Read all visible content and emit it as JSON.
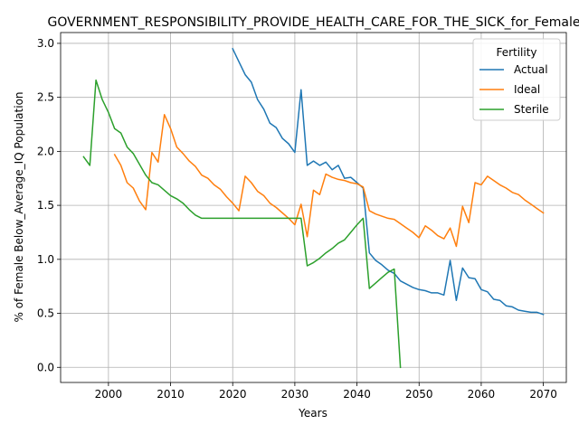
{
  "chart_data": {
    "type": "line",
    "title": "GOVERNMENT_RESPONSIBILITY_PROVIDE_HEALTH_CARE_FOR_THE_SICK_for_Female",
    "xlabel": "Years",
    "ylabel": "% of Female Below_Average_IQ Population",
    "xlim": [
      1992.3,
      2073.7
    ],
    "ylim": [
      -0.14,
      3.1
    ],
    "xticks": [
      2000,
      2010,
      2020,
      2030,
      2040,
      2050,
      2060,
      2070
    ],
    "yticks": [
      0.0,
      0.5,
      1.0,
      1.5,
      2.0,
      2.5,
      3.0
    ],
    "xtick_labels": [
      "2000",
      "2010",
      "2020",
      "2030",
      "2040",
      "2050",
      "2060",
      "2070"
    ],
    "ytick_labels": [
      "0.0",
      "0.5",
      "1.0",
      "1.5",
      "2.0",
      "2.5",
      "3.0"
    ],
    "grid": true,
    "legend": {
      "title": "Fertility",
      "position": "upper-right"
    },
    "series": [
      {
        "name": "Actual",
        "color": "#1f77b4",
        "x": [
          2020,
          2021,
          2022,
          2023,
          2024,
          2025,
          2026,
          2027,
          2028,
          2029,
          2030,
          2031,
          2032,
          2033,
          2034,
          2035,
          2036,
          2037,
          2038,
          2039,
          2040,
          2041,
          2042,
          2043,
          2044,
          2045,
          2046,
          2047,
          2048,
          2049,
          2050,
          2051,
          2052,
          2053,
          2054,
          2055,
          2056,
          2057,
          2058,
          2059,
          2060,
          2061,
          2062,
          2063,
          2064,
          2065,
          2066,
          2067,
          2068,
          2069,
          2070
        ],
        "y": [
          2.95,
          2.83,
          2.71,
          2.64,
          2.48,
          2.39,
          2.26,
          2.22,
          2.12,
          2.07,
          1.99,
          2.57,
          1.87,
          1.91,
          1.87,
          1.9,
          1.83,
          1.87,
          1.75,
          1.76,
          1.71,
          1.66,
          1.06,
          0.99,
          0.95,
          0.9,
          0.87,
          0.8,
          0.77,
          0.74,
          0.72,
          0.71,
          0.69,
          0.69,
          0.67,
          0.99,
          0.62,
          0.92,
          0.83,
          0.82,
          0.72,
          0.7,
          0.63,
          0.62,
          0.57,
          0.56,
          0.53,
          0.52,
          0.51,
          0.51,
          0.49
        ]
      },
      {
        "name": "Ideal",
        "color": "#ff7f0e",
        "x": [
          2001,
          2002,
          2003,
          2004,
          2005,
          2006,
          2007,
          2008,
          2009,
          2010,
          2011,
          2012,
          2013,
          2014,
          2015,
          2016,
          2017,
          2018,
          2019,
          2020,
          2021,
          2022,
          2023,
          2024,
          2025,
          2026,
          2027,
          2028,
          2029,
          2030,
          2031,
          2032,
          2033,
          2034,
          2035,
          2036,
          2037,
          2038,
          2039,
          2040,
          2041,
          2042,
          2043,
          2044,
          2045,
          2046,
          2047,
          2048,
          2049,
          2050,
          2051,
          2052,
          2053,
          2054,
          2055,
          2056,
          2057,
          2058,
          2059,
          2060,
          2061,
          2062,
          2063,
          2064,
          2065,
          2066,
          2067,
          2068,
          2069,
          2070
        ],
        "y": [
          1.97,
          1.87,
          1.71,
          1.66,
          1.54,
          1.46,
          1.99,
          1.9,
          2.34,
          2.21,
          2.04,
          1.98,
          1.91,
          1.86,
          1.78,
          1.75,
          1.69,
          1.65,
          1.58,
          1.52,
          1.45,
          1.77,
          1.71,
          1.63,
          1.59,
          1.52,
          1.48,
          1.43,
          1.38,
          1.32,
          1.51,
          1.21,
          1.64,
          1.6,
          1.79,
          1.76,
          1.74,
          1.73,
          1.71,
          1.7,
          1.67,
          1.45,
          1.42,
          1.4,
          1.38,
          1.37,
          1.33,
          1.29,
          1.25,
          1.2,
          1.31,
          1.27,
          1.22,
          1.19,
          1.29,
          1.12,
          1.49,
          1.34,
          1.71,
          1.69,
          1.77,
          1.73,
          1.69,
          1.66,
          1.62,
          1.6,
          1.55,
          1.51,
          1.47,
          1.43
        ]
      },
      {
        "name": "Sterile",
        "color": "#2ca02c",
        "x": [
          1996,
          1997,
          1998,
          1999,
          2000,
          2001,
          2002,
          2003,
          2004,
          2005,
          2006,
          2007,
          2008,
          2009,
          2010,
          2011,
          2012,
          2013,
          2014,
          2015,
          2016,
          2017,
          2018,
          2019,
          2020,
          2021,
          2022,
          2023,
          2024,
          2025,
          2026,
          2027,
          2028,
          2029,
          2030,
          2031,
          2032,
          2033,
          2034,
          2035,
          2036,
          2037,
          2038,
          2039,
          2040,
          2041,
          2042,
          2043,
          2044,
          2045,
          2046,
          2047
        ],
        "y": [
          1.95,
          1.87,
          2.66,
          2.48,
          2.36,
          2.21,
          2.17,
          2.04,
          1.98,
          1.88,
          1.78,
          1.71,
          1.69,
          1.64,
          1.59,
          1.56,
          1.52,
          1.46,
          1.41,
          1.38,
          1.38,
          1.38,
          1.38,
          1.38,
          1.38,
          1.38,
          1.38,
          1.38,
          1.38,
          1.38,
          1.38,
          1.38,
          1.38,
          1.38,
          1.38,
          1.38,
          0.94,
          0.97,
          1.01,
          1.06,
          1.1,
          1.15,
          1.18,
          1.25,
          1.32,
          1.38,
          0.73,
          0.78,
          0.83,
          0.88,
          0.91,
          0.0
        ]
      }
    ]
  }
}
